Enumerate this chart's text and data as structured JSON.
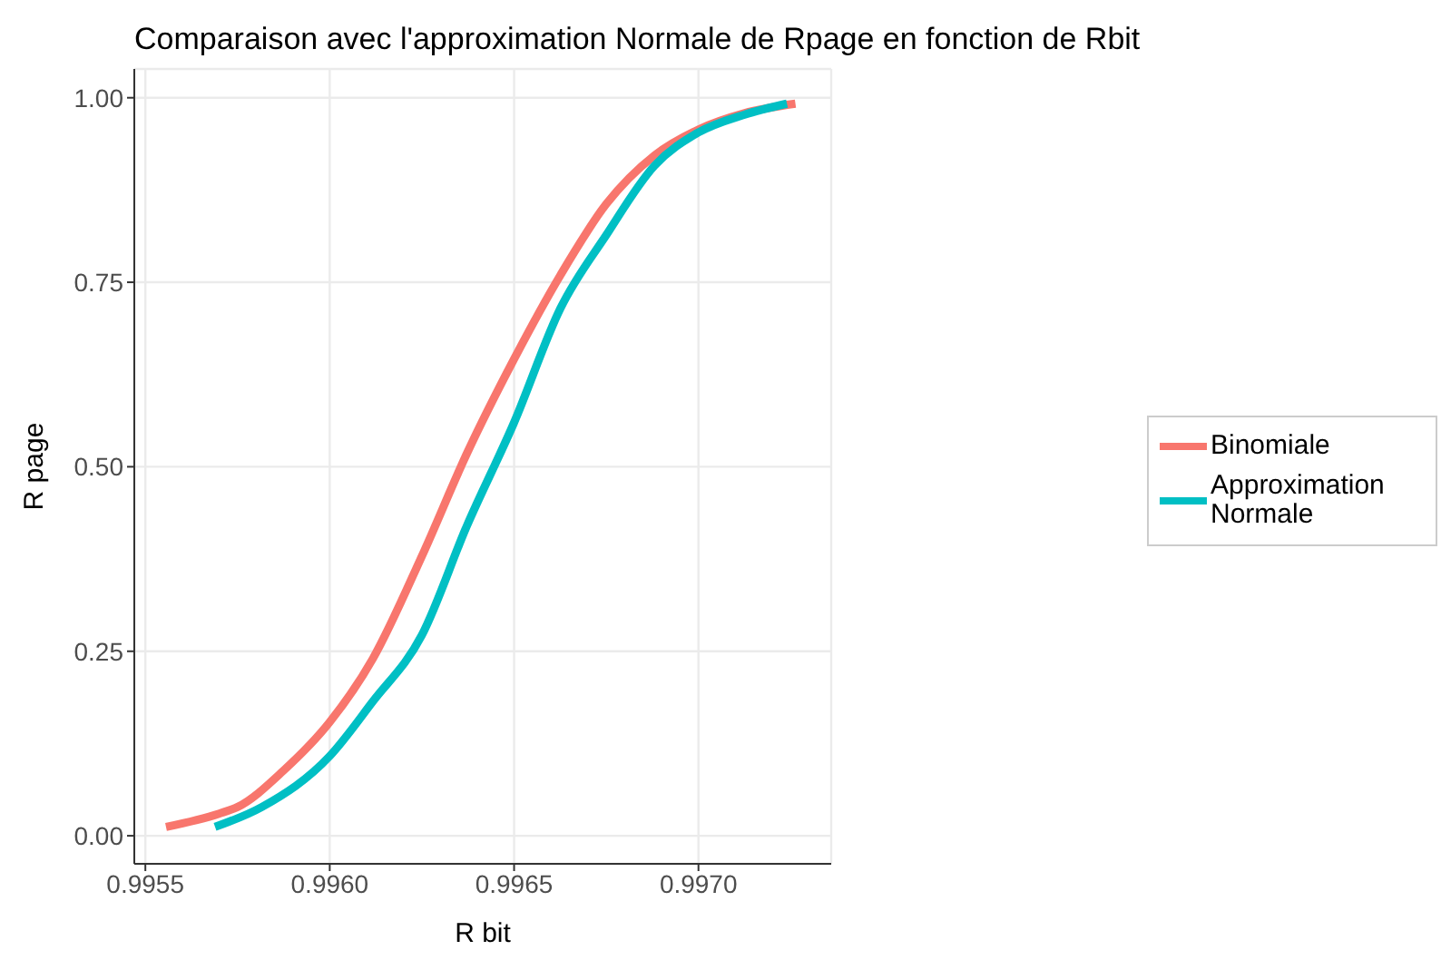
{
  "chart_data": {
    "type": "line",
    "title": "Comparaison avec l'approximation Normale de Rpage en fonction de Rbit",
    "xlabel": "R bit",
    "ylabel": "R page",
    "xlim": [
      0.99547,
      0.99736
    ],
    "xticks": [
      0.9955,
      {
        "value": 0.996,
        "label": "0.9960"
      },
      0.9965,
      {
        "value": 0.997,
        "label": "0.9970"
      }
    ],
    "ylim": [
      -0.038,
      1.039
    ],
    "yticks": [
      {
        "value": 0,
        "label": "0.00"
      },
      0.25,
      {
        "value": 0.5,
        "label": "0.50"
      },
      0.75,
      {
        "value": 1,
        "label": "1.00"
      }
    ],
    "grid": true,
    "legend": "right",
    "line_style": "solid",
    "marker": "none",
    "series": [
      {
        "name": "Binomiale",
        "color": "#f8766d",
        "x": [
          0.995556,
          0.9957,
          0.99575,
          0.995874,
          0.996,
          0.996117,
          0.99625,
          0.996372,
          0.9965,
          0.996626,
          0.99675,
          0.996881,
          0.997,
          0.997124,
          0.997263
        ],
        "values": [
          0.012,
          0.03,
          0.039,
          0.088,
          0.154,
          0.24,
          0.379,
          0.518,
          0.646,
          0.76,
          0.856,
          0.922,
          0.957,
          0.979,
          0.992
        ]
      },
      {
        "name": "Approximation Normale",
        "color": "#00bfc4",
        "x": [
          0.995689,
          0.995816,
          0.996,
          0.996117,
          0.99625,
          0.996372,
          0.9965,
          0.996626,
          0.99675,
          0.996881,
          0.997,
          0.997124,
          0.99724
        ],
        "values": [
          0.012,
          0.039,
          0.108,
          0.182,
          0.272,
          0.42,
          0.56,
          0.715,
          0.814,
          0.908,
          0.953,
          0.977,
          0.992
        ]
      }
    ]
  }
}
